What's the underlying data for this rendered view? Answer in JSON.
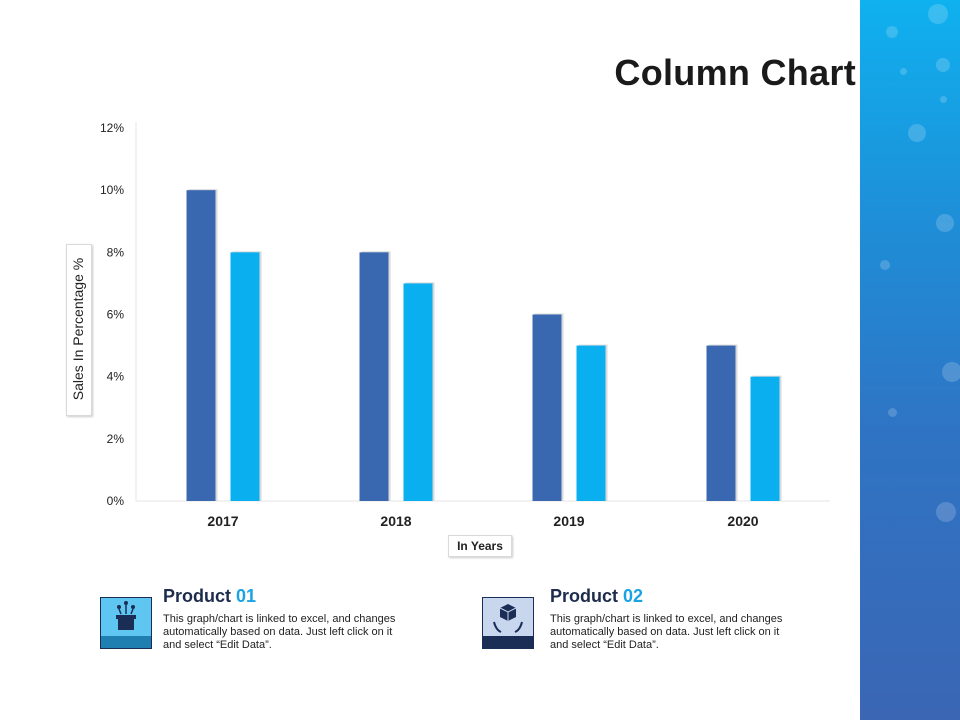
{
  "page": {
    "title": "Column Chart"
  },
  "chart_data": {
    "type": "bar",
    "categories": [
      "2017",
      "2018",
      "2019",
      "2020"
    ],
    "series": [
      {
        "name": "Product 01",
        "values": [
          10,
          8,
          6,
          5
        ],
        "color": "#3a68b0"
      },
      {
        "name": "Product 02",
        "values": [
          8,
          7,
          5,
          4
        ],
        "color": "#0aaff0"
      }
    ],
    "ylim": [
      0,
      12
    ],
    "yticks": [
      0,
      2,
      4,
      6,
      8,
      10,
      12
    ],
    "ytick_labels": [
      "0%",
      "2%",
      "4%",
      "6%",
      "8%",
      "10%",
      "12%"
    ],
    "ylabel": "Sales In Percentage %",
    "xlabel": "In Years",
    "grid": false
  },
  "products": [
    {
      "label": "Product",
      "number": "01",
      "icon": "box-gift-icon",
      "description": "This graph/chart is linked to excel, and changes automatically based on data. Just left click on it and select “Edit Data”."
    },
    {
      "label": "Product",
      "number": "02",
      "icon": "box-hands-icon",
      "description": "This graph/chart is linked to excel, and changes automatically based on data. Just left click on it and select “Edit Data”."
    }
  ],
  "colors": {
    "accent": "#1aa3e2",
    "dark_blue": "#3a68b0",
    "light_blue": "#0aaff0",
    "title_navy": "#1d2c4c"
  }
}
